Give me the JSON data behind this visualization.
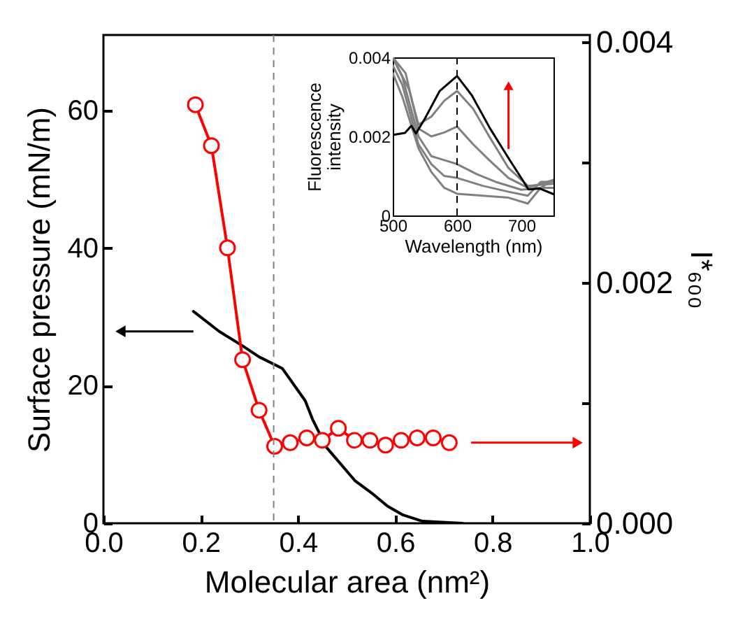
{
  "chart_data": [
    {
      "type": "line",
      "xlabel": "Molecular area (nm²)",
      "ylabel": "Surface pressure (mN/m)",
      "y2label": "I*₆₀₀",
      "xlim": [
        0,
        1
      ],
      "xticks": [
        {
          "value": 0,
          "label": "0.0"
        },
        0.2,
        0.4,
        0.6,
        0.8,
        {
          "value": 1,
          "label": "1.0"
        }
      ],
      "ylim": [
        0,
        71
      ],
      "yticks": [
        0,
        20,
        40,
        60
      ],
      "y2lim": [
        0,
        0.00406
      ],
      "y2ticks": [
        {
          "value": 0,
          "label": "0.000"
        },
        {
          "value": 0.001,
          "label": null
        },
        0.002,
        {
          "value": 0.003,
          "label": null
        },
        0.004
      ],
      "grid": false,
      "series": [
        {
          "color": "#000000",
          "axis": "y",
          "x": [
            0.185,
            0.238,
            0.286,
            0.32,
            0.368,
            0.415,
            0.43,
            0.459,
            0.517,
            0.555,
            0.584,
            0.616,
            0.656,
            0.738
          ],
          "values": [
            30.8,
            27.9,
            25.8,
            24.2,
            22.5,
            17.8,
            15.1,
            11.0,
            6.2,
            4.2,
            2.5,
            1.2,
            0.3,
            0
          ]
        },
        {
          "color": "#ff0000",
          "axis": "y2",
          "marker": "circle",
          "x": [
            0.189,
            0.222,
            0.255,
            0.286,
            0.32,
            0.352,
            0.384,
            0.418,
            0.45,
            0.483,
            0.516,
            0.548,
            0.58,
            0.612,
            0.645,
            0.678,
            0.711
          ],
          "values": [
            0.00348,
            0.00314,
            0.00229,
            0.00136,
            0.00094,
            0.00064,
            0.00067,
            0.00071,
            0.00069,
            0.00079,
            0.00069,
            0.00069,
            0.00065,
            0.00069,
            0.00071,
            0.00071,
            0.00067
          ]
        }
      ],
      "ref_lines": [
        {
          "axis": "x",
          "value": 0.35,
          "color": "#808080",
          "line_style": "dashed"
        }
      ]
    },
    {
      "type": "line",
      "xlabel": "Wavelength (nm)",
      "ylabel": "Fluorescence intensity",
      "xlim": [
        500,
        750
      ],
      "xticks": [
        500,
        600,
        700
      ],
      "ylim": [
        0,
        0.004
      ],
      "yticks": [
        0,
        0.002,
        0.004
      ],
      "grid": false,
      "series": [
        {
          "color": "#808080",
          "x": [
            500,
            525,
            540,
            560,
            580,
            600,
            625,
            650,
            680,
            710,
            750
          ],
          "values": [
            0.004,
            0.0032,
            0.0023,
            0.0025,
            0.0029,
            0.00315,
            0.0027,
            0.002,
            0.0012,
            0.00075,
            0.0008
          ]
        },
        {
          "color": "#808080",
          "x": [
            500,
            520,
            540,
            560,
            580,
            600,
            625,
            650,
            680,
            710,
            750
          ],
          "values": [
            0.004,
            0.0036,
            0.0022,
            0.002,
            0.0021,
            0.00225,
            0.0018,
            0.0014,
            0.00095,
            0.0007,
            0.0009
          ]
        },
        {
          "color": "#808080",
          "x": [
            500,
            515,
            540,
            560,
            580,
            600,
            630,
            660,
            700,
            730,
            750
          ],
          "values": [
            0.004,
            0.0035,
            0.002,
            0.0015,
            0.0014,
            0.0013,
            0.00105,
            0.00085,
            0.00065,
            0.0007,
            0.0009
          ]
        },
        {
          "color": "#808080",
          "x": [
            500,
            515,
            540,
            560,
            580,
            600,
            640,
            680,
            710,
            730,
            750
          ],
          "values": [
            0.0038,
            0.0033,
            0.0018,
            0.0013,
            0.001,
            0.00095,
            0.00075,
            0.0006,
            0.0005,
            0.00085,
            0.00085
          ]
        },
        {
          "color": "#808080",
          "x": [
            500,
            515,
            540,
            560,
            580,
            600,
            640,
            680,
            710,
            730,
            750
          ],
          "values": [
            0.0036,
            0.003,
            0.0017,
            0.0011,
            0.0007,
            0.00055,
            0.0005,
            0.00045,
            0.0003,
            0.0007,
            0.0007
          ]
        },
        {
          "color": "#000000",
          "x": [
            501,
            519,
            529,
            536,
            550,
            573,
            600,
            623,
            651,
            680,
            701,
            711,
            729,
            750
          ],
          "values": [
            0.00204,
            0.00209,
            0.00227,
            0.00207,
            0.00245,
            0.00315,
            0.00353,
            0.00304,
            0.00221,
            0.00145,
            0.00092,
            0.00066,
            0.00068,
            0.00054
          ]
        }
      ],
      "ref_lines": [
        {
          "axis": "x",
          "value": 600,
          "color": "#000000",
          "line_style": "dashed"
        }
      ]
    }
  ]
}
